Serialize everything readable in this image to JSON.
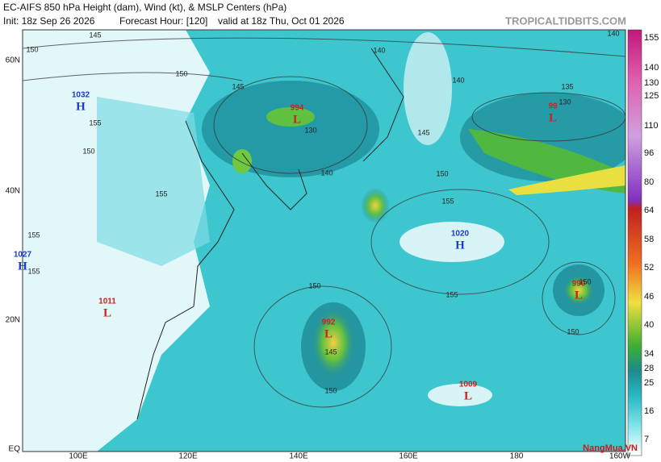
{
  "header": {
    "title": "EC-AIFS 850 hPa Height (dam), Wind (kt), & MSLP Centers (hPa)",
    "init": "Init: 18z Sep 26 2026",
    "forecast_hour": "Forecast Hour: [120]",
    "valid": "valid at 18z Thu, Oct 01 2026",
    "site": "TROPICALTIDBITS.COM"
  },
  "axes": {
    "lat_labels": [
      "60N",
      "40N",
      "20N",
      "EQ"
    ],
    "lon_labels": [
      "100E",
      "120E",
      "140E",
      "160E",
      "180",
      "160W"
    ]
  },
  "centers": [
    {
      "type": "H",
      "value": "1032"
    },
    {
      "type": "H",
      "value": "1027"
    },
    {
      "type": "L",
      "value": "1011"
    },
    {
      "type": "L",
      "value": "994"
    },
    {
      "type": "L",
      "value": "99"
    },
    {
      "type": "H",
      "value": "1020"
    },
    {
      "type": "L",
      "value": "990"
    },
    {
      "type": "L",
      "value": "992"
    },
    {
      "type": "L",
      "value": "1009"
    }
  ],
  "contour_labels": [
    "145",
    "150",
    "150",
    "155",
    "150",
    "155",
    "155",
    "155",
    "140",
    "140",
    "145",
    "145",
    "150",
    "155",
    "135",
    "130",
    "140",
    "140",
    "130",
    "150",
    "145",
    "150",
    "155",
    "150",
    "150"
  ],
  "colorbar": {
    "ticks": [
      155,
      140,
      130,
      125,
      110,
      96,
      80,
      64,
      58,
      52,
      46,
      40,
      34,
      28,
      25,
      16,
      7
    ]
  },
  "watermark": "NangMua.VN"
}
